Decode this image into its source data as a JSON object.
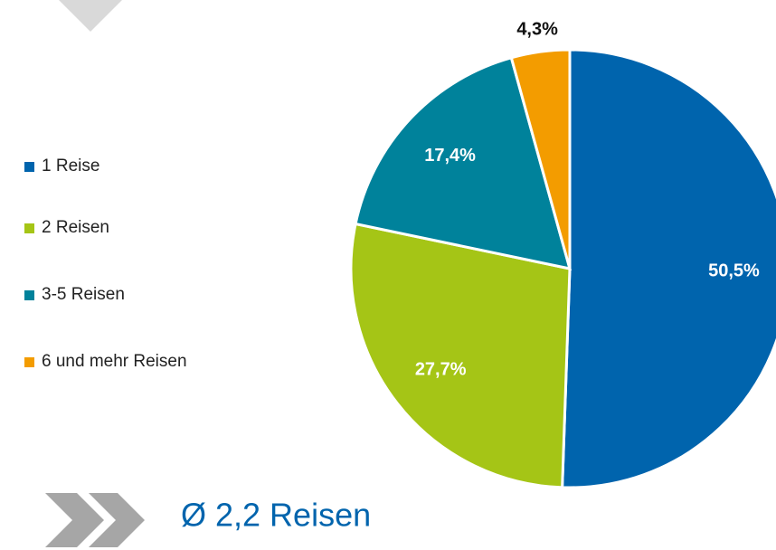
{
  "chart_data": {
    "type": "pie",
    "categories": [
      "1 Reise",
      "2 Reisen",
      "3-5 Reisen",
      "6 und mehr Reisen"
    ],
    "values": [
      50.5,
      27.7,
      17.4,
      4.3
    ],
    "value_labels": [
      "50,5%",
      "27,7%",
      "17,4%",
      "4,3%"
    ],
    "colors": [
      "#0064ad",
      "#a5c516",
      "#00829b",
      "#f39c00"
    ],
    "legend": "left",
    "annotation": "Ø 2,2 Reisen"
  }
}
